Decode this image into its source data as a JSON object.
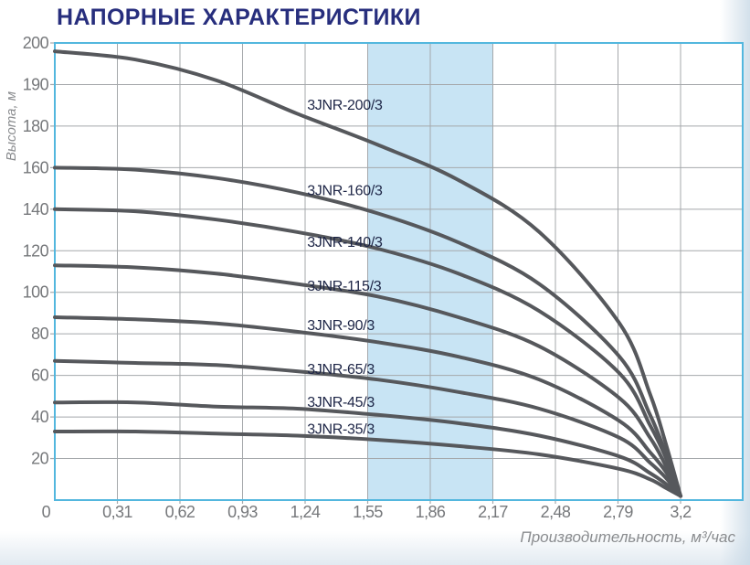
{
  "page": {
    "title": "НАПОРНЫЕ ХАРАКТЕРИСТИКИ"
  },
  "chart_data": {
    "type": "line",
    "title": "НАПОРНЫЕ ХАРАКТЕРИСТИКИ",
    "xlabel": "Производительность, м³/час",
    "ylabel": "Высота, м",
    "xlim": [
      0,
      3.2
    ],
    "ylim": [
      0,
      200
    ],
    "grid": true,
    "legend": "inline-labels-on-curves",
    "origin_label": "0",
    "x_tick_labels": [
      "0",
      "0,31",
      "0,62",
      "0,93",
      "1,24",
      "1,55",
      "1,86",
      "2,17",
      "2,48",
      "2,79",
      "3,2"
    ],
    "x_tick_values": [
      0,
      0.31,
      0.62,
      0.93,
      1.24,
      1.55,
      1.86,
      2.17,
      2.48,
      2.79,
      3.2
    ],
    "y_tick_labels": [
      "200",
      "190",
      "180",
      "160",
      "140",
      "120",
      "100",
      "80",
      "60",
      "40",
      "20"
    ],
    "y_tick_values": [
      200,
      190,
      180,
      160,
      140,
      120,
      100,
      80,
      60,
      40,
      20
    ],
    "highlight_band": {
      "x_from": 1.55,
      "x_to": 2.17
    },
    "x": [
      0,
      0.4,
      0.8,
      1.2,
      1.6,
      2.0,
      2.4,
      2.8,
      3.0,
      3.1,
      3.2
    ],
    "series": [
      {
        "name": "3JNR-200/3",
        "values": [
          198,
          196,
          191,
          183,
          171,
          154,
          129,
          85,
          51,
          28,
          2
        ],
        "label_at": {
          "q": 1.25,
          "h": 185
        }
      },
      {
        "name": "3JNR-160/3",
        "values": [
          160,
          159,
          155,
          148,
          138,
          124,
          104,
          69,
          41,
          23,
          2
        ],
        "label_at": {
          "q": 1.25,
          "h": 149
        }
      },
      {
        "name": "3JNR-140/3",
        "values": [
          140,
          139,
          135,
          129,
          121,
          109,
          91,
          61,
          36,
          21,
          2
        ],
        "label_at": {
          "q": 1.25,
          "h": 124
        }
      },
      {
        "name": "3JNR-115/3",
        "values": [
          113,
          112,
          109,
          104,
          98,
          88,
          74,
          49,
          30,
          17,
          2
        ],
        "label_at": {
          "q": 1.25,
          "h": 103
        }
      },
      {
        "name": "3JNR-90/3",
        "values": [
          88,
          87,
          85,
          81,
          76,
          69,
          58,
          38,
          23,
          14,
          2
        ],
        "label_at": {
          "q": 1.25,
          "h": 84
        }
      },
      {
        "name": "3JNR-65/3",
        "values": [
          67,
          66,
          65,
          62,
          58,
          52,
          44,
          30,
          18,
          11,
          2
        ],
        "label_at": {
          "q": 1.25,
          "h": 63
        }
      },
      {
        "name": "3JNR-45/3",
        "values": [
          47,
          47,
          45,
          44,
          41,
          37,
          31,
          21,
          13,
          8,
          2
        ],
        "label_at": {
          "q": 1.25,
          "h": 47
        }
      },
      {
        "name": "3JNR-35/3",
        "values": [
          33,
          33,
          32,
          31,
          29,
          26,
          22,
          15,
          10,
          6,
          2
        ],
        "label_at": {
          "q": 1.25,
          "h": 34
        }
      }
    ],
    "colors": {
      "title": "#272e7d",
      "label": "#1d2546",
      "curve": "#56585c",
      "band": "#c8e4f4",
      "frame": "#53b7de",
      "grid": "#a5a8ab",
      "tick_text": "#76787b",
      "axis_text": "#8a8c8f"
    }
  }
}
